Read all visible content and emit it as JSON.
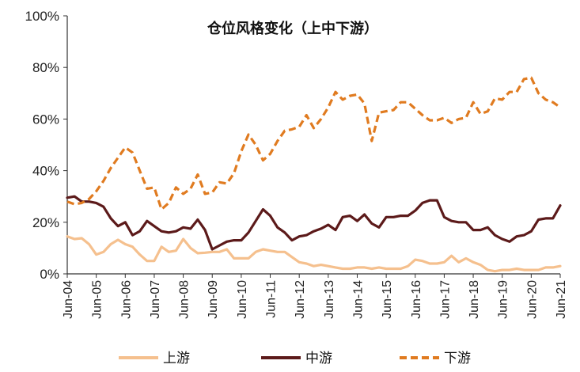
{
  "chart_data": {
    "type": "line",
    "title": "仓位风格变化（上中下游）",
    "xlabel": "",
    "ylabel": "",
    "ylim": [
      0,
      100
    ],
    "y_ticks": [
      "0%",
      "20%",
      "40%",
      "60%",
      "80%",
      "100%"
    ],
    "y_tick_values": [
      0,
      20,
      40,
      60,
      80,
      100
    ],
    "x_tick_labels": [
      "Jun-04",
      "Jun-05",
      "Jun-06",
      "Jun-07",
      "Jun-08",
      "Jun-09",
      "Jun-10",
      "Jun-11",
      "Jun-12",
      "Jun-13",
      "Jun-14",
      "Jun-15",
      "Jun-16",
      "Jun-17",
      "Jun-18",
      "Jun-19",
      "Jun-20",
      "Jun-21"
    ],
    "x_tick_values": [
      2004.5,
      2005.5,
      2006.5,
      2007.5,
      2008.5,
      2009.5,
      2010.5,
      2011.5,
      2012.5,
      2013.5,
      2014.5,
      2015.5,
      2016.5,
      2017.5,
      2018.5,
      2019.5,
      2020.5,
      2021.5
    ],
    "xlim": [
      2004.5,
      2021.5
    ],
    "grid": false,
    "legend_position": "bottom",
    "series": [
      {
        "name": "上游",
        "color": "#F5C08E",
        "style": "solid",
        "points": [
          [
            2004.5,
            14.5
          ],
          [
            2004.75,
            13.5
          ],
          [
            2005.0,
            13.8
          ],
          [
            2005.25,
            11.5
          ],
          [
            2005.5,
            7.5
          ],
          [
            2005.75,
            8.5
          ],
          [
            2006.0,
            11.5
          ],
          [
            2006.25,
            13.2
          ],
          [
            2006.5,
            11.5
          ],
          [
            2006.75,
            10.5
          ],
          [
            2007.0,
            7.5
          ],
          [
            2007.25,
            5.0
          ],
          [
            2007.5,
            5.0
          ],
          [
            2007.75,
            10.5
          ],
          [
            2008.0,
            8.5
          ],
          [
            2008.25,
            9.0
          ],
          [
            2008.5,
            13.5
          ],
          [
            2008.75,
            10.0
          ],
          [
            2009.0,
            8.0
          ],
          [
            2009.25,
            8.2
          ],
          [
            2009.5,
            8.5
          ],
          [
            2009.75,
            8.5
          ],
          [
            2010.0,
            9.5
          ],
          [
            2010.25,
            6.0
          ],
          [
            2010.5,
            6.0
          ],
          [
            2010.75,
            6.0
          ],
          [
            2011.0,
            8.5
          ],
          [
            2011.25,
            9.5
          ],
          [
            2011.5,
            9.0
          ],
          [
            2011.75,
            8.5
          ],
          [
            2012.0,
            8.5
          ],
          [
            2012.25,
            6.5
          ],
          [
            2012.5,
            4.5
          ],
          [
            2012.75,
            4.0
          ],
          [
            2013.0,
            3.0
          ],
          [
            2013.25,
            3.5
          ],
          [
            2013.5,
            3.0
          ],
          [
            2013.75,
            2.5
          ],
          [
            2014.0,
            2.0
          ],
          [
            2014.25,
            2.0
          ],
          [
            2014.5,
            2.5
          ],
          [
            2014.75,
            2.5
          ],
          [
            2015.0,
            2.0
          ],
          [
            2015.25,
            2.5
          ],
          [
            2015.5,
            2.0
          ],
          [
            2015.75,
            2.0
          ],
          [
            2016.0,
            2.0
          ],
          [
            2016.25,
            3.0
          ],
          [
            2016.5,
            5.5
          ],
          [
            2016.75,
            5.0
          ],
          [
            2017.0,
            4.0
          ],
          [
            2017.25,
            4.0
          ],
          [
            2017.5,
            4.5
          ],
          [
            2017.75,
            7.0
          ],
          [
            2018.0,
            4.5
          ],
          [
            2018.25,
            6.0
          ],
          [
            2018.5,
            4.5
          ],
          [
            2018.75,
            3.5
          ],
          [
            2019.0,
            1.5
          ],
          [
            2019.25,
            1.0
          ],
          [
            2019.5,
            1.5
          ],
          [
            2019.75,
            1.5
          ],
          [
            2020.0,
            2.0
          ],
          [
            2020.25,
            1.5
          ],
          [
            2020.5,
            1.5
          ],
          [
            2020.75,
            1.5
          ],
          [
            2021.0,
            2.5
          ],
          [
            2021.25,
            2.5
          ],
          [
            2021.5,
            3.0
          ]
        ]
      },
      {
        "name": "中游",
        "color": "#5C1A1A",
        "style": "solid",
        "points": [
          [
            2004.5,
            29.5
          ],
          [
            2004.75,
            30.0
          ],
          [
            2005.0,
            28.0
          ],
          [
            2005.25,
            28.0
          ],
          [
            2005.5,
            27.5
          ],
          [
            2005.75,
            26.0
          ],
          [
            2006.0,
            21.5
          ],
          [
            2006.25,
            18.5
          ],
          [
            2006.5,
            20.0
          ],
          [
            2006.75,
            15.0
          ],
          [
            2007.0,
            16.5
          ],
          [
            2007.25,
            20.5
          ],
          [
            2007.5,
            18.5
          ],
          [
            2007.75,
            16.5
          ],
          [
            2008.0,
            16.0
          ],
          [
            2008.25,
            16.5
          ],
          [
            2008.5,
            18.0
          ],
          [
            2008.75,
            17.5
          ],
          [
            2009.0,
            21.0
          ],
          [
            2009.25,
            17.0
          ],
          [
            2009.5,
            9.5
          ],
          [
            2009.75,
            11.0
          ],
          [
            2010.0,
            12.5
          ],
          [
            2010.25,
            13.0
          ],
          [
            2010.5,
            13.0
          ],
          [
            2010.75,
            16.0
          ],
          [
            2011.0,
            20.5
          ],
          [
            2011.25,
            25.0
          ],
          [
            2011.5,
            22.5
          ],
          [
            2011.75,
            18.0
          ],
          [
            2012.0,
            16.0
          ],
          [
            2012.25,
            13.0
          ],
          [
            2012.5,
            14.5
          ],
          [
            2012.75,
            15.0
          ],
          [
            2013.0,
            16.5
          ],
          [
            2013.25,
            17.5
          ],
          [
            2013.5,
            19.0
          ],
          [
            2013.75,
            17.0
          ],
          [
            2014.0,
            22.0
          ],
          [
            2014.25,
            22.5
          ],
          [
            2014.5,
            20.5
          ],
          [
            2014.75,
            23.0
          ],
          [
            2015.0,
            19.5
          ],
          [
            2015.25,
            18.0
          ],
          [
            2015.5,
            22.0
          ],
          [
            2015.75,
            22.0
          ],
          [
            2016.0,
            22.5
          ],
          [
            2016.25,
            22.5
          ],
          [
            2016.5,
            24.5
          ],
          [
            2016.75,
            27.5
          ],
          [
            2017.0,
            28.5
          ],
          [
            2017.25,
            28.5
          ],
          [
            2017.5,
            22.0
          ],
          [
            2017.75,
            20.5
          ],
          [
            2018.0,
            20.0
          ],
          [
            2018.25,
            20.0
          ],
          [
            2018.5,
            17.0
          ],
          [
            2018.75,
            17.0
          ],
          [
            2019.0,
            18.0
          ],
          [
            2019.25,
            15.0
          ],
          [
            2019.5,
            13.5
          ],
          [
            2019.75,
            12.5
          ],
          [
            2020.0,
            14.5
          ],
          [
            2020.25,
            15.0
          ],
          [
            2020.5,
            16.5
          ],
          [
            2020.75,
            21.0
          ],
          [
            2021.0,
            21.5
          ],
          [
            2021.25,
            21.5
          ],
          [
            2021.5,
            26.5
          ]
        ]
      },
      {
        "name": "下游",
        "color": "#E07B20",
        "style": "dashed",
        "points": [
          [
            2004.5,
            28.0
          ],
          [
            2004.75,
            27.0
          ],
          [
            2005.0,
            27.5
          ],
          [
            2005.25,
            29.0
          ],
          [
            2005.5,
            32.0
          ],
          [
            2005.75,
            36.0
          ],
          [
            2006.0,
            41.0
          ],
          [
            2006.25,
            45.0
          ],
          [
            2006.5,
            49.0
          ],
          [
            2006.75,
            47.0
          ],
          [
            2007.0,
            40.0
          ],
          [
            2007.25,
            33.0
          ],
          [
            2007.5,
            33.5
          ],
          [
            2007.75,
            25.0
          ],
          [
            2008.0,
            27.5
          ],
          [
            2008.25,
            33.5
          ],
          [
            2008.5,
            31.0
          ],
          [
            2008.75,
            33.0
          ],
          [
            2009.0,
            38.5
          ],
          [
            2009.25,
            31.0
          ],
          [
            2009.5,
            31.5
          ],
          [
            2009.75,
            35.5
          ],
          [
            2010.0,
            35.0
          ],
          [
            2010.25,
            39.0
          ],
          [
            2010.5,
            47.5
          ],
          [
            2010.75,
            54.0
          ],
          [
            2011.0,
            50.0
          ],
          [
            2011.25,
            44.0
          ],
          [
            2011.5,
            46.5
          ],
          [
            2011.75,
            51.5
          ],
          [
            2012.0,
            55.5
          ],
          [
            2012.25,
            56.0
          ],
          [
            2012.5,
            57.0
          ],
          [
            2012.75,
            61.5
          ],
          [
            2013.0,
            56.5
          ],
          [
            2013.25,
            60.0
          ],
          [
            2013.5,
            64.5
          ],
          [
            2013.75,
            70.5
          ],
          [
            2014.0,
            67.5
          ],
          [
            2014.25,
            69.0
          ],
          [
            2014.5,
            69.5
          ],
          [
            2014.75,
            66.0
          ],
          [
            2015.0,
            51.5
          ],
          [
            2015.25,
            62.5
          ],
          [
            2015.5,
            63.0
          ],
          [
            2015.75,
            63.5
          ],
          [
            2016.0,
            66.5
          ],
          [
            2016.25,
            66.5
          ],
          [
            2016.5,
            64.0
          ],
          [
            2016.75,
            61.5
          ],
          [
            2017.0,
            59.5
          ],
          [
            2017.25,
            59.5
          ],
          [
            2017.5,
            60.5
          ],
          [
            2017.75,
            58.5
          ],
          [
            2018.0,
            60.0
          ],
          [
            2018.25,
            60.5
          ],
          [
            2018.5,
            66.5
          ],
          [
            2018.75,
            62.0
          ],
          [
            2019.0,
            63.0
          ],
          [
            2019.25,
            68.0
          ],
          [
            2019.5,
            67.5
          ],
          [
            2019.75,
            70.5
          ],
          [
            2020.0,
            70.5
          ],
          [
            2020.25,
            75.5
          ],
          [
            2020.5,
            76.0
          ],
          [
            2020.75,
            70.0
          ],
          [
            2021.0,
            67.5
          ],
          [
            2021.25,
            66.5
          ],
          [
            2021.5,
            64.5
          ]
        ]
      }
    ]
  }
}
